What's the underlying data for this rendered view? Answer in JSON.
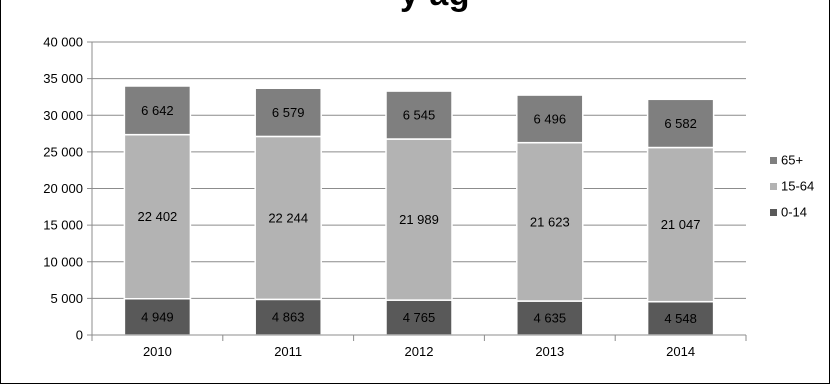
{
  "chart_data": {
    "type": "bar",
    "stacked": true,
    "title_fragment": "y  ag",
    "categories": [
      "2010",
      "2011",
      "2012",
      "2013",
      "2014"
    ],
    "series": [
      {
        "name": "0-14",
        "color": "#595959",
        "values": [
          4949,
          4863,
          4765,
          4635,
          4548
        ],
        "labels": [
          "4 949",
          "4 863",
          "4 765",
          "4 635",
          "4 548"
        ]
      },
      {
        "name": "15-64",
        "color": "#b3b3b3",
        "values": [
          22402,
          22244,
          21989,
          21623,
          21047
        ],
        "labels": [
          "22 402",
          "22 244",
          "21 989",
          "21 623",
          "21 047"
        ]
      },
      {
        "name": "65+",
        "color": "#7f7f7f",
        "values": [
          6642,
          6579,
          6545,
          6496,
          6582
        ],
        "labels": [
          "6 642",
          "6 579",
          "6 545",
          "6 496",
          "6 582"
        ]
      }
    ],
    "legend_order": [
      "65+",
      "15-64",
      "0-14"
    ],
    "legend_position": "right",
    "ylim": [
      0,
      40000
    ],
    "yticks": [
      0,
      5000,
      10000,
      15000,
      20000,
      25000,
      30000,
      35000,
      40000
    ],
    "ytick_labels": [
      "0",
      "5 000",
      "10 000",
      "15 000",
      "20 000",
      "25 000",
      "30 000",
      "35 000",
      "40 000"
    ],
    "grid": true,
    "xlabel": "",
    "ylabel": ""
  }
}
